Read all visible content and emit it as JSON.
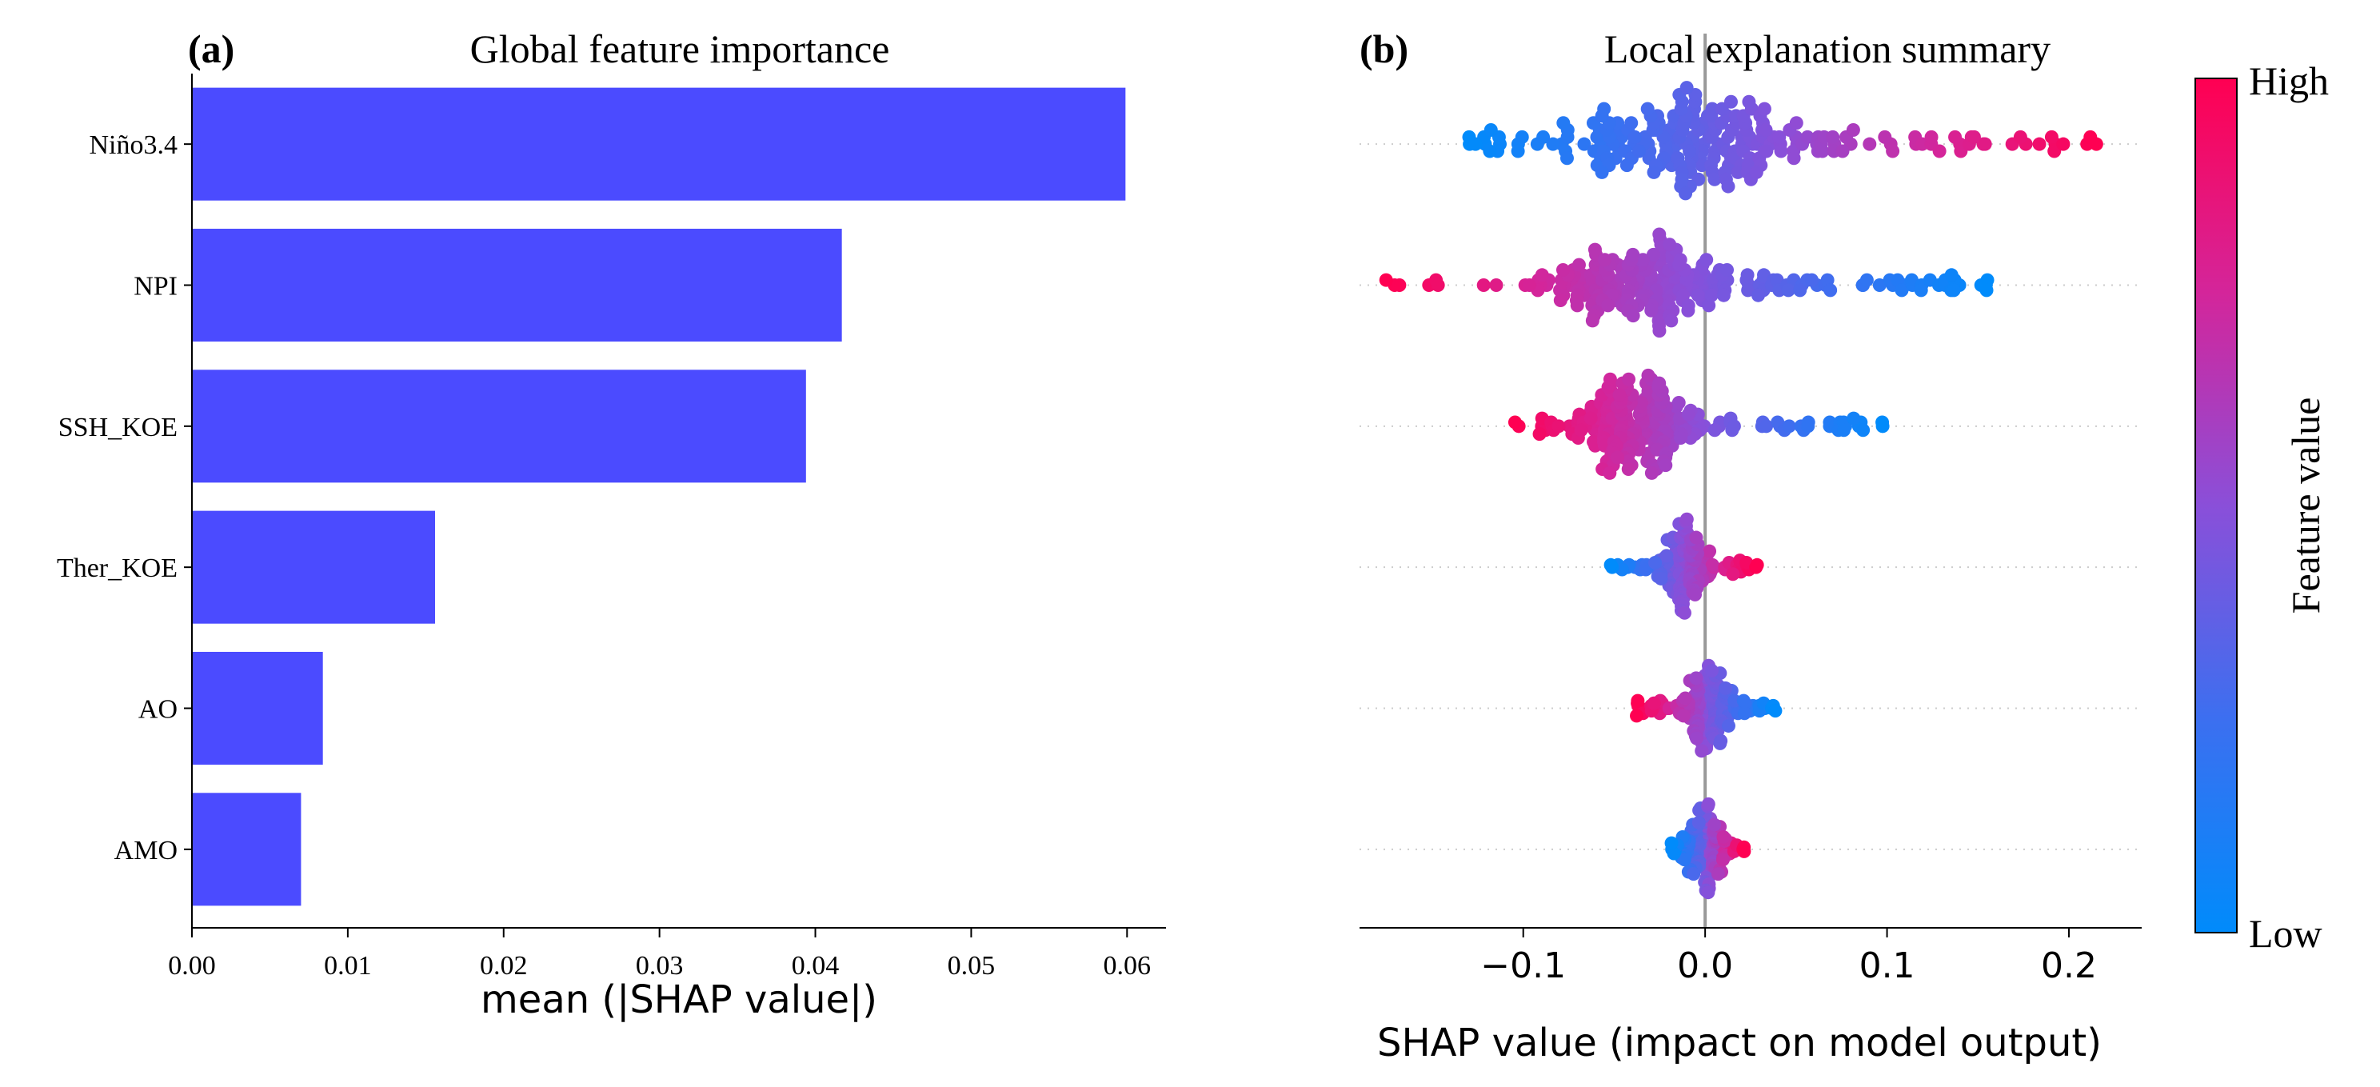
{
  "chart_data": [
    {
      "panel_label": "(a)",
      "type": "bar",
      "orientation": "horizontal",
      "title": "Global feature importance",
      "categories": [
        "Niño3.4",
        "NPI",
        "SSH_KOE",
        "Ther_KOE",
        "AO",
        "AMO"
      ],
      "values": [
        0.0599,
        0.0417,
        0.0394,
        0.0156,
        0.0084,
        0.007
      ],
      "xlabel": "mean (|SHAP value|)",
      "ylabel": "",
      "xlim": [
        0.0,
        0.0625
      ],
      "xticks": [
        0.0,
        0.01,
        0.02,
        0.03,
        0.04,
        0.05,
        0.06
      ],
      "xtick_labels": [
        "0.00",
        "0.01",
        "0.02",
        "0.03",
        "0.04",
        "0.05",
        "0.06"
      ],
      "bar_color": "#4b4bff"
    },
    {
      "panel_label": "(b)",
      "type": "scatter",
      "subtype": "beeswarm",
      "title": "Local explanation summary",
      "features": [
        "Niño3.4",
        "NPI",
        "SSH_KOE",
        "Ther_KOE",
        "AO",
        "AMO"
      ],
      "xlabel": "SHAP value (impact on model output)",
      "xlim": [
        -0.19,
        0.24
      ],
      "xticks": [
        -0.1,
        0.0,
        0.1,
        0.2
      ],
      "xtick_labels": [
        "−0.1",
        "0.0",
        "0.1",
        "0.2"
      ],
      "zero_line": 0.0,
      "colorbar": {
        "label": "Feature value",
        "high_label": "High",
        "low_label": "Low",
        "low_color": "#008bfb",
        "high_color": "#ff0052"
      },
      "series": [
        {
          "name": "Niño3.4",
          "min": -0.13,
          "max": 0.215,
          "spread_width": 0.06,
          "max_half_height": 0.4,
          "color_trend": 1,
          "core_center": 0.0,
          "count": 230
        },
        {
          "name": "NPI",
          "min": -0.175,
          "max": 0.155,
          "spread_width": 0.05,
          "max_half_height": 0.36,
          "color_trend": -1,
          "core_center": -0.03,
          "count": 230
        },
        {
          "name": "SSH_KOE",
          "min": -0.105,
          "max": 0.098,
          "spread_width": 0.03,
          "max_half_height": 0.36,
          "color_trend": -1,
          "core_center": -0.04,
          "count": 220
        },
        {
          "name": "Ther_KOE",
          "min": -0.052,
          "max": 0.028,
          "spread_width": 0.012,
          "max_half_height": 0.34,
          "color_trend": 1,
          "core_center": -0.012,
          "count": 150
        },
        {
          "name": "AO",
          "min": -0.038,
          "max": 0.038,
          "spread_width": 0.012,
          "max_half_height": 0.32,
          "color_trend": -1,
          "core_center": 0.002,
          "count": 150
        },
        {
          "name": "AMO",
          "min": -0.018,
          "max": 0.022,
          "spread_width": 0.008,
          "max_half_height": 0.32,
          "color_trend": 1,
          "core_center": 0.0,
          "count": 130
        }
      ]
    }
  ]
}
